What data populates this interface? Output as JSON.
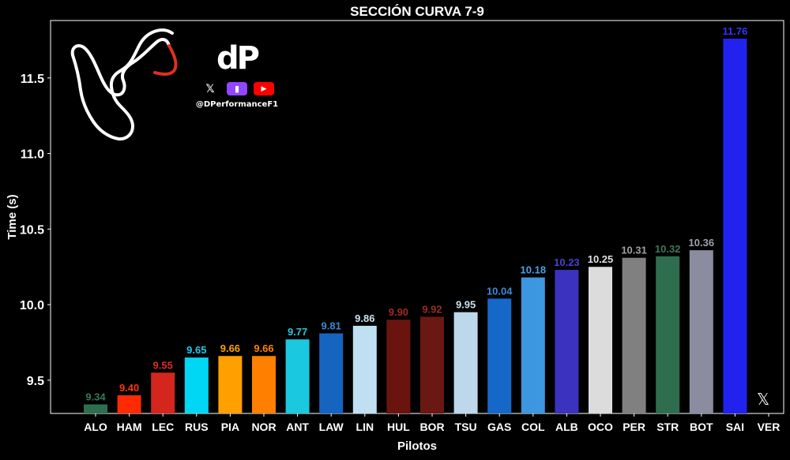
{
  "chart_data": {
    "type": "bar",
    "title": "SECCIÓN CURVA 7-9",
    "xlabel": "Pilotos",
    "ylabel": "Time (s)",
    "ylim": [
      9.28,
      11.88
    ],
    "yticks": [
      9.5,
      10.0,
      10.5,
      11.0,
      11.5
    ],
    "yticklabels": [
      "9.5",
      "10.0",
      "10.5",
      "11.0",
      "11.5"
    ],
    "grid": false,
    "categories": [
      "ALO",
      "HAM",
      "LEC",
      "RUS",
      "PIA",
      "NOR",
      "ANT",
      "LAW",
      "LIN",
      "HUL",
      "BOR",
      "TSU",
      "GAS",
      "COL",
      "ALB",
      "OCO",
      "PER",
      "STR",
      "BOT",
      "SAI",
      "VER"
    ],
    "values": [
      9.34,
      9.4,
      9.55,
      9.65,
      9.66,
      9.66,
      9.77,
      9.81,
      9.86,
      9.9,
      9.92,
      9.95,
      10.04,
      10.18,
      10.23,
      10.25,
      10.31,
      10.32,
      10.36,
      11.76,
      null
    ],
    "value_labels": [
      "9.34",
      "9.40",
      "9.55",
      "9.65",
      "9.66",
      "9.66",
      "9.77",
      "9.81",
      "9.86",
      "9.90",
      "9.92",
      "9.95",
      "10.04",
      "10.18",
      "10.23",
      "10.25",
      "10.31",
      "10.32",
      "10.36",
      "11.76",
      ""
    ],
    "colors": [
      "#2e6e4e",
      "#ff2a00",
      "#d4261c",
      "#00d7f5",
      "#ff9f00",
      "#ff7f00",
      "#1ac8e0",
      "#1565c0",
      "#bfe0f2",
      "#6a1410",
      "#6a1812",
      "#bcd8ea",
      "#1668c8",
      "#3c96e0",
      "#3c32c0",
      "#dcdcdc",
      "#808080",
      "#2e6e4e",
      "#8c8ca0",
      "#2222ee",
      ""
    ],
    "label_colors": [
      "#3a7a5a",
      "#ff3010",
      "#e02a20",
      "#19c9f0",
      "#ffa000",
      "#ff8000",
      "#20c8e0",
      "#3a8ad8",
      "#c8e2f2",
      "#a02a20",
      "#a02a20",
      "#c8e0f0",
      "#3a8ad8",
      "#4aa0e8",
      "#4a40d8",
      "#e0e0e0",
      "#a0a0a0",
      "#3a7a5a",
      "#a0a0b0",
      "#3333ff",
      ""
    ]
  },
  "branding": {
    "logo_text": "dP",
    "social_handle": "@DPerformanceF1",
    "icons": [
      "x-icon",
      "twitch-icon",
      "youtube-icon"
    ],
    "x_glyph": "𝕏",
    "twitch_glyph": "▮",
    "youtube_glyph": "▶",
    "corner_x_glyph": "𝕏"
  },
  "track_map": {
    "highlight_color": "#e0301c",
    "line_color": "#ffffff"
  }
}
